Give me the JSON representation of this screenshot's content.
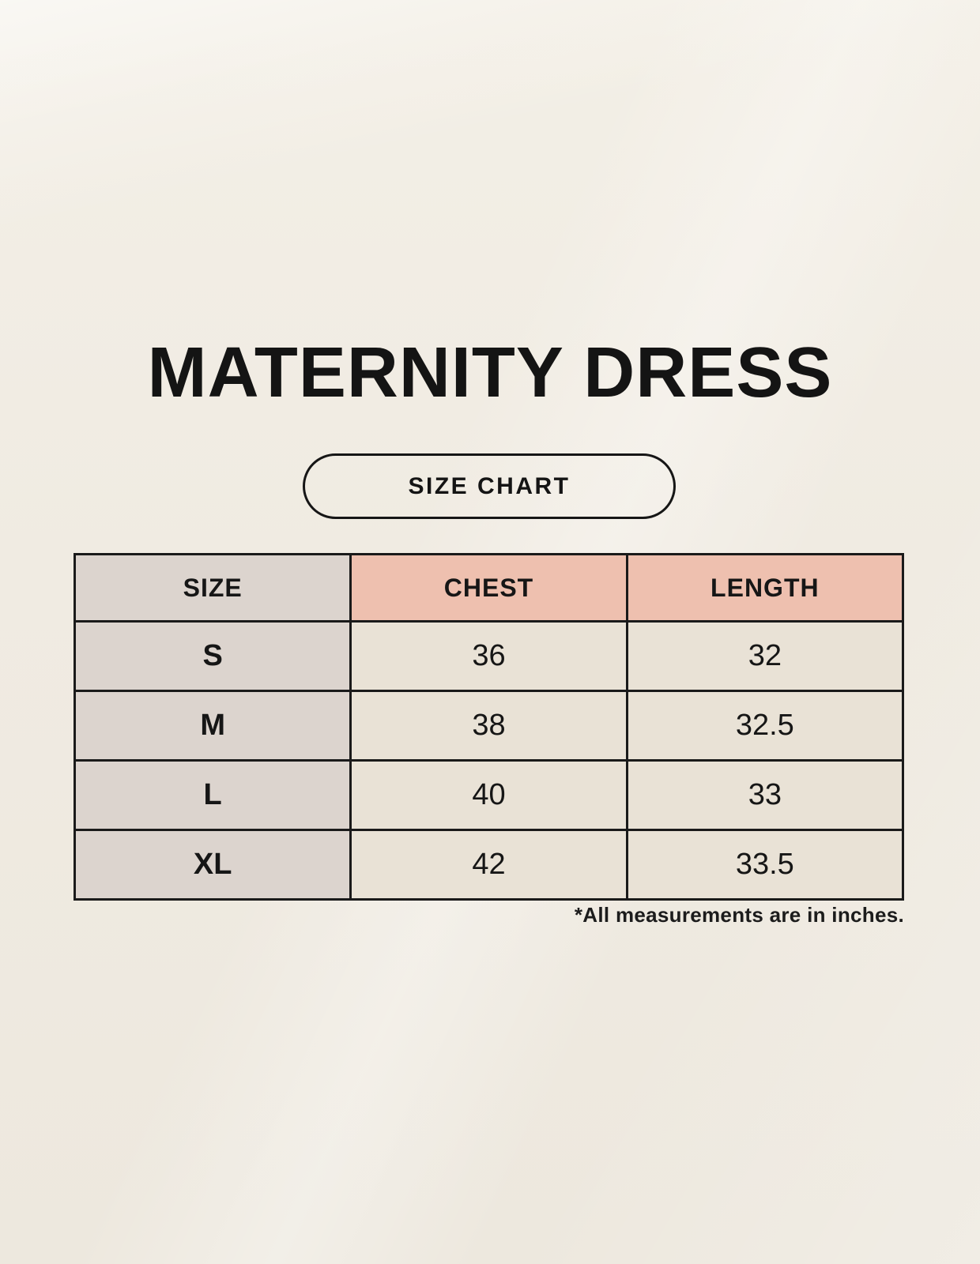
{
  "page": {
    "title": "MATERNITY DRESS",
    "badge_label": "SIZE CHART",
    "footnote": "*All measurements are in inches."
  },
  "chart_data": {
    "type": "table",
    "title": "MATERNITY DRESS — SIZE CHART",
    "columns": [
      "SIZE",
      "CHEST",
      "LENGTH"
    ],
    "rows": [
      {
        "size": "S",
        "chest": 36,
        "length": 32
      },
      {
        "size": "M",
        "chest": 38,
        "length": 32.5
      },
      {
        "size": "L",
        "chest": 40,
        "length": 33
      },
      {
        "size": "XL",
        "chest": 42,
        "length": 33.5
      }
    ],
    "units": "inches"
  },
  "colors": {
    "background": "#f0ebe2",
    "header_accent_pink": "#eec0af",
    "size_column_gray": "#dcd4ce",
    "data_cell_cream": "#e9e2d6",
    "border_black": "#1a1a1a",
    "text_black": "#141414"
  }
}
